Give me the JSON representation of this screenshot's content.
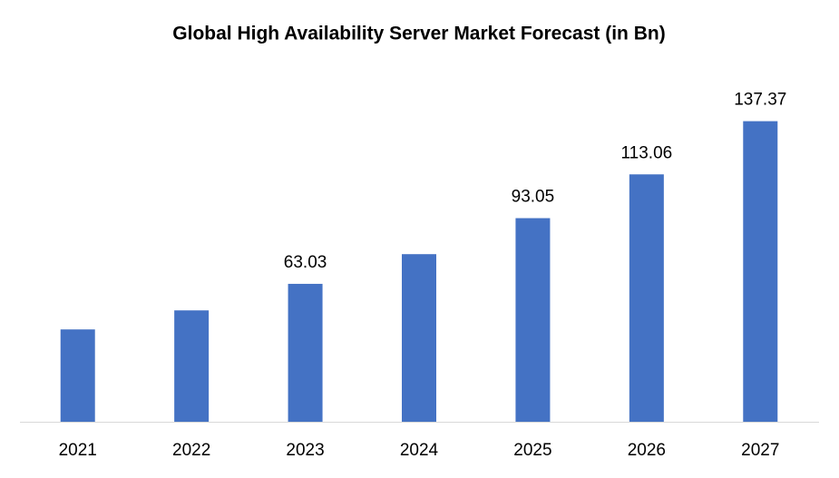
{
  "chart_data": {
    "type": "bar",
    "title": "Global High Availability Server Market Forecast (in Bn)",
    "categories": [
      "2021",
      "2022",
      "2023",
      "2024",
      "2025",
      "2026",
      "2027"
    ],
    "values": [
      42.2,
      50.9,
      63.03,
      76.6,
      93.05,
      113.06,
      137.37
    ],
    "value_labels": [
      null,
      null,
      "63.03",
      null,
      "93.05",
      "113.06",
      "137.37"
    ],
    "color": "#4472c4",
    "ylim": [
      0,
      160
    ]
  }
}
